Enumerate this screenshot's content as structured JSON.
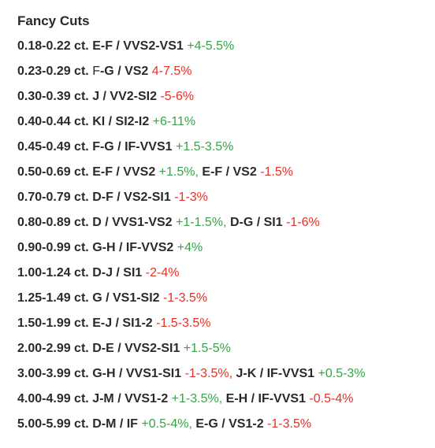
{
  "title": "Fancy Cuts",
  "colors": {
    "up": "#3aa24a",
    "down": "#e0332a",
    "text": "#2a2a2a"
  },
  "rows": [
    {
      "size": "0.18-0.22 ct.",
      "entries": [
        {
          "spec": "E-F / VVS2-VS1",
          "change": "+4-5.5%",
          "dir": "up"
        }
      ]
    },
    {
      "size": "0.23-0.29 ct.",
      "entries": [
        {
          "spec_light": "F",
          "spec": "-G / VS2",
          "change": "4-7.5%",
          "dir": "down"
        }
      ]
    },
    {
      "size": "0.30-0.39 ct.",
      "entries": [
        {
          "spec": "J / VV2-SI2",
          "change": "-5-6%",
          "dir": "down"
        }
      ]
    },
    {
      "size": "0.40-0.44 ct.",
      "entries": [
        {
          "spec": "KI / SI2-I2",
          "change": "+6-11%",
          "dir": "up"
        }
      ]
    },
    {
      "size": "0.45-0.49 ct.",
      "entries": [
        {
          "spec": "F-G / IF-VVS1",
          "change": "+1.5-3.5%",
          "dir": "up"
        }
      ]
    },
    {
      "size": "0.50-0.69 ct.",
      "entries": [
        {
          "spec": "E-F / VVS2",
          "change": "+1.5%,",
          "dir": "up"
        },
        {
          "spec": "E-F / VS2",
          "change": "-1.5%",
          "dir": "down"
        }
      ]
    },
    {
      "size": "0.70-0.79 ct.",
      "entries": [
        {
          "spec": "D-F / VS2-SI1",
          "change": "-1-3%",
          "dir": "down"
        }
      ]
    },
    {
      "size": "0.80-0.89 ct.",
      "entries": [
        {
          "spec": "D / VVS1-VS2",
          "change": "+1-1.5%,",
          "dir": "up"
        },
        {
          "spec": "D-G / SI1",
          "change": "-1-6%",
          "dir": "down"
        }
      ]
    },
    {
      "size": "0.90-0.99 ct.",
      "entries": [
        {
          "spec": "G-H / IF-VVS2",
          "change": "+4%",
          "dir": "up"
        }
      ]
    },
    {
      "size": "1.00-1.24 ct.",
      "entries": [
        {
          "spec": "D-J / SI1",
          "change": "-2-4%",
          "dir": "down"
        }
      ]
    },
    {
      "size": "1.25-1.49 ct.",
      "entries": [
        {
          "spec": "G / VS1-SI2",
          "change": "-1-3.5%",
          "dir": "down"
        }
      ]
    },
    {
      "size": "1.50-1.99 ct.",
      "entries": [
        {
          "spec": "E-J / SI1-2",
          "change": "-1.5-3.5%",
          "dir": "down"
        }
      ]
    },
    {
      "size": "2.00-2.99 ct.",
      "entries": [
        {
          "spec": "D-E / VVS2-SI1",
          "change": "+1.5-5%",
          "dir": "up"
        }
      ]
    },
    {
      "size": "3.00-3.99 ct.",
      "entries": [
        {
          "spec": "G-H / VVS1-SI1",
          "change": "-1-3.5%,",
          "dir": "down"
        },
        {
          "spec": "J-K / IF-VVS1",
          "change": "+0.5-3%",
          "dir": "up"
        }
      ]
    },
    {
      "size": "4.00-4.99 ct.",
      "entries": [
        {
          "spec": "J-M / VVS1-2",
          "change": "+1-3.5%,",
          "dir": "up"
        },
        {
          "spec": "E-H / IF-VVS1",
          "change": "-0.5-4%",
          "dir": "down"
        }
      ]
    },
    {
      "size": "5.00-5.99 ct.",
      "entries": [
        {
          "spec": "D-M / IF",
          "change": "+0.5-4%,",
          "dir": "up"
        },
        {
          "spec": "E-G / VS1-2",
          "change": "-1-3.5%",
          "dir": "down"
        }
      ]
    }
  ]
}
